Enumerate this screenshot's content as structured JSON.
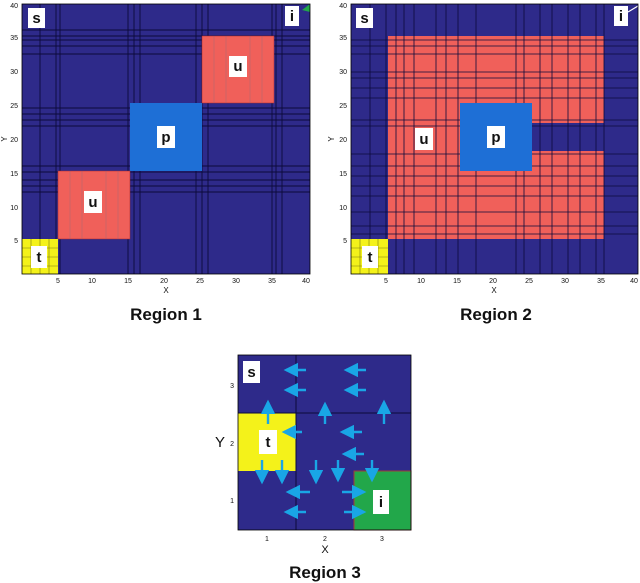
{
  "colors": {
    "background_region": "#2e2a8a",
    "unsafe": "#f0605a",
    "protected": "#1e6fd6",
    "target": "#f4f21a",
    "initial": "#22a74a",
    "arrow": "#19a6e6",
    "grid": "#0c0a3a"
  },
  "panels": [
    {
      "caption": "Region 1",
      "xlabel": "X",
      "ylabel": "Y",
      "xticks": [
        "5",
        "10",
        "15",
        "20",
        "25",
        "30",
        "35",
        "40"
      ],
      "yticks": [
        "5",
        "10",
        "15",
        "20",
        "25",
        "30",
        "35",
        "40"
      ],
      "labels": {
        "s": "s",
        "i": "i",
        "t": "t",
        "u1": "u",
        "p": "p",
        "u2": "u"
      }
    },
    {
      "caption": "Region 2",
      "xlabel": "X",
      "ylabel": "Y",
      "xticks": [
        "5",
        "10",
        "15",
        "20",
        "25",
        "30",
        "35",
        "40"
      ],
      "yticks": [
        "5",
        "10",
        "15",
        "20",
        "25",
        "30",
        "35",
        "40"
      ],
      "labels": {
        "s": "s",
        "i": "i",
        "t": "t",
        "u": "u",
        "p": "p"
      }
    },
    {
      "caption": "Region 3",
      "xlabel": "X",
      "ylabel": "Y",
      "xticks": [
        "1",
        "2",
        "3"
      ],
      "yticks": [
        "1",
        "2",
        "3"
      ],
      "labels": {
        "s": "s",
        "t": "t",
        "i": "i"
      },
      "vector_field_icon": "arrow-icon"
    }
  ]
}
